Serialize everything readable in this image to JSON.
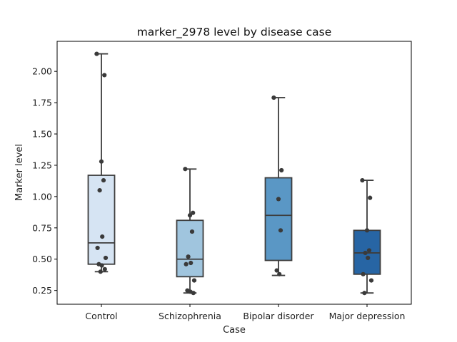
{
  "chart_data": {
    "type": "box",
    "title": "marker_2978 level by disease case",
    "xlabel": "Case",
    "ylabel": "Marker level",
    "ylim": [
      0.14,
      2.24
    ],
    "yticks": [
      0.25,
      0.5,
      0.75,
      1.0,
      1.25,
      1.5,
      1.75,
      2.0
    ],
    "ytick_labels": [
      "0.25",
      "0.50",
      "0.75",
      "1.00",
      "1.25",
      "1.50",
      "1.75",
      "2.00"
    ],
    "grid": false,
    "categories": [
      "Control",
      "Schizophrenia",
      "Bipolar disorder",
      "Major depression"
    ],
    "colors": [
      "#d6e4f3",
      "#a0c5de",
      "#5a97c5",
      "#2765a4"
    ],
    "boxes": [
      {
        "whisker_low": 0.4,
        "q1": 0.46,
        "median": 0.63,
        "q3": 1.17,
        "whisker_high": 2.14
      },
      {
        "whisker_low": 0.23,
        "q1": 0.36,
        "median": 0.5,
        "q3": 0.81,
        "whisker_high": 1.22
      },
      {
        "whisker_low": 0.37,
        "q1": 0.49,
        "median": 0.85,
        "q3": 1.15,
        "whisker_high": 1.79
      },
      {
        "whisker_low": 0.23,
        "q1": 0.38,
        "median": 0.55,
        "q3": 0.73,
        "whisker_high": 1.13
      }
    ],
    "points": [
      [
        2.14,
        1.97,
        1.28,
        1.13,
        1.05,
        0.68,
        0.59,
        0.51,
        0.46,
        0.45,
        0.42,
        0.4
      ],
      [
        1.22,
        0.87,
        0.85,
        0.72,
        0.52,
        0.47,
        0.46,
        0.33,
        0.25,
        0.24,
        0.23
      ],
      [
        1.79,
        1.21,
        0.98,
        0.73,
        0.41,
        0.38
      ],
      [
        1.13,
        0.99,
        0.73,
        0.57,
        0.55,
        0.51,
        0.38,
        0.33,
        0.23
      ]
    ]
  }
}
